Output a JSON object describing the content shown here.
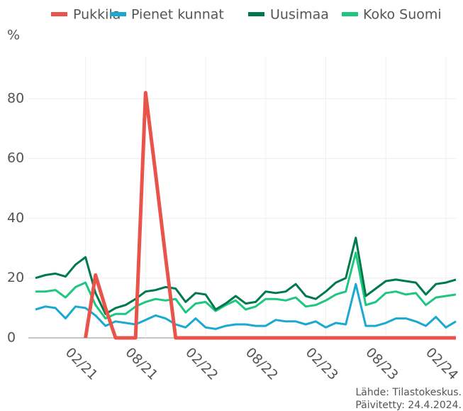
{
  "chart_data": {
    "type": "line",
    "y_label": "%",
    "source": "Lähde: Tilastokeskus.",
    "updated": "Päivitetty: 24.4.2024.",
    "categories": [
      null,
      null,
      null,
      null,
      null,
      "02/21",
      null,
      null,
      null,
      null,
      null,
      "08/21",
      null,
      null,
      null,
      null,
      null,
      "02/22",
      null,
      null,
      null,
      null,
      null,
      "08/22",
      null,
      null,
      null,
      null,
      null,
      "02/23",
      null,
      null,
      null,
      null,
      null,
      "08/23",
      null,
      null,
      null,
      null,
      null,
      "02/24",
      null
    ],
    "series": [
      {
        "name": "Pukkila",
        "color": "#e8534a",
        "values": [
          null,
          null,
          null,
          null,
          null,
          0,
          21,
          10,
          0,
          0,
          0,
          82,
          55,
          27,
          0,
          0,
          0,
          0,
          0,
          0,
          0,
          0,
          0,
          0,
          0,
          0,
          0,
          0,
          0,
          0,
          0,
          0,
          0,
          0,
          0,
          0,
          0,
          0,
          0,
          0,
          0,
          0,
          0
        ]
      },
      {
        "name": "Pienet kunnat",
        "color": "#1aa9d0",
        "values": [
          9.5,
          10.5,
          10,
          6.5,
          10.5,
          10,
          7.5,
          4,
          5.5,
          5,
          4.5,
          6,
          7.5,
          6.5,
          4.5,
          3.5,
          6.5,
          3.5,
          3,
          4,
          4.5,
          4.5,
          4,
          4,
          6,
          5.5,
          5.5,
          4.5,
          5.5,
          3.5,
          5,
          4.5,
          18,
          4,
          4,
          5,
          6.5,
          6.5,
          5.5,
          4,
          7,
          3.5,
          5.5
        ]
      },
      {
        "name": "Uusimaa",
        "color": "#007a4d",
        "values": [
          20,
          21,
          21.5,
          20.5,
          24.5,
          27,
          15,
          8,
          10,
          11,
          13,
          15.5,
          16,
          17,
          16.5,
          12,
          15,
          14.5,
          9.5,
          11.5,
          14,
          11.5,
          12,
          15.5,
          15,
          15.5,
          18,
          14,
          13,
          15.5,
          18.5,
          20,
          33.5,
          14,
          16.5,
          19,
          19.5,
          19,
          18.5,
          14.5,
          18,
          18.5,
          19.5
        ]
      },
      {
        "name": "Koko Suomi",
        "color": "#1dc77f",
        "values": [
          15.5,
          15.5,
          16,
          13.5,
          17,
          18.5,
          11,
          6.5,
          8,
          8,
          10.5,
          12,
          13,
          12.5,
          13,
          8.5,
          11.5,
          12,
          9,
          11,
          12.5,
          9.5,
          10.5,
          13,
          13,
          12.5,
          13.5,
          10.5,
          11,
          12.5,
          14.5,
          15.5,
          28.5,
          11,
          12,
          15,
          15.5,
          14.5,
          15,
          11,
          13.5,
          14,
          14.5
        ]
      }
    ],
    "ylim": [
      0,
      94
    ],
    "yticks": [
      0,
      20,
      40,
      60,
      80
    ],
    "grid": true
  }
}
